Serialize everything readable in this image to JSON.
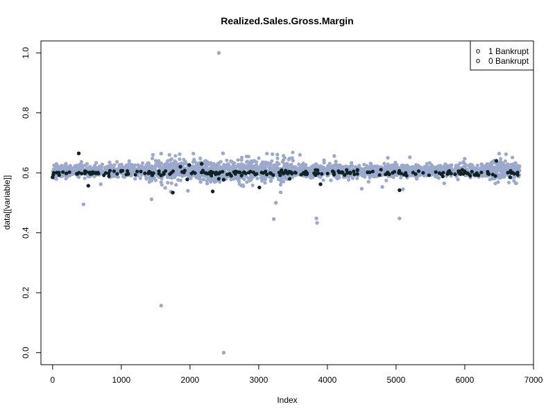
{
  "chart_data": {
    "type": "scatter",
    "title": "Realized.Sales.Gross.Margin",
    "xlabel": "Index",
    "ylabel": "data[[variable]]",
    "xlim": [
      -170,
      7000
    ],
    "ylim": [
      -0.04,
      1.04
    ],
    "xticks": [
      0,
      1000,
      2000,
      3000,
      4000,
      5000,
      6000,
      7000
    ],
    "yticks": [
      0.0,
      0.2,
      0.4,
      0.6,
      0.8,
      1.0
    ],
    "xtick_labels": [
      "0",
      "1000",
      "2000",
      "3000",
      "4000",
      "5000",
      "6000",
      "7000"
    ],
    "ytick_labels": [
      "0.0",
      "0.2",
      "0.4",
      "0.6",
      "0.8",
      "1.0"
    ],
    "grid": false,
    "legend": {
      "position": "top-right",
      "entries": [
        {
          "symbol": "o",
          "label": "1 Bankrupt",
          "color": "#000000"
        },
        {
          "symbol": "o",
          "label": "0 Bankrupt",
          "color": "#000000"
        }
      ]
    },
    "series": [
      {
        "color": "#9aa9cc",
        "marker": "filled-circle",
        "points": [
          [
            2420,
            1.0
          ],
          [
            2490,
            0.0
          ],
          [
            1580,
            0.157
          ],
          [
            450,
            0.495
          ],
          [
            1440,
            0.512
          ],
          [
            3220,
            0.446
          ],
          [
            3250,
            0.5
          ],
          [
            3840,
            0.448
          ],
          [
            3850,
            0.433
          ],
          [
            5050,
            0.448
          ],
          [
            1640,
            0.55
          ],
          [
            1720,
            0.537
          ],
          [
            1970,
            0.54
          ],
          [
            700,
            0.562
          ],
          [
            3320,
            0.535
          ],
          [
            4500,
            0.547
          ],
          [
            4800,
            0.553
          ],
          [
            5100,
            0.545
          ],
          [
            5700,
            0.565
          ],
          [
            6750,
            0.565
          ],
          [
            1460,
            0.66
          ],
          [
            1580,
            0.664
          ],
          [
            2050,
            0.664
          ],
          [
            3120,
            0.664
          ],
          [
            3600,
            0.66
          ],
          [
            4100,
            0.656
          ],
          [
            4880,
            0.65
          ],
          [
            5200,
            0.652
          ],
          [
            6000,
            0.647
          ],
          [
            6500,
            0.664
          ],
          [
            6600,
            0.662
          ],
          [
            1700,
            0.66
          ],
          [
            1850,
            0.662
          ],
          [
            2480,
            0.665
          ],
          [
            3200,
            0.662
          ],
          [
            400,
            0.628
          ],
          [
            820,
            0.622
          ],
          [
            1400,
            0.632
          ],
          [
            2150,
            0.648
          ],
          [
            2750,
            0.643
          ],
          [
            3450,
            0.648
          ],
          [
            3950,
            0.642
          ],
          [
            4350,
            0.633
          ],
          [
            5450,
            0.63
          ],
          [
            6250,
            0.628
          ],
          [
            1200,
            0.58
          ],
          [
            1500,
            0.575
          ],
          [
            2300,
            0.57
          ],
          [
            2700,
            0.578
          ],
          [
            3400,
            0.58
          ],
          [
            4050,
            0.575
          ],
          [
            4600,
            0.57
          ],
          [
            5300,
            0.58
          ],
          [
            5900,
            0.578
          ],
          [
            6400,
            0.58
          ]
        ],
        "band": {
          "x_range": [
            0,
            6800
          ],
          "y_center": 0.607,
          "y_spread": 0.018,
          "count": 2600,
          "seed": 17,
          "dense_regions": [
            [
              1350,
              3500,
              0.034
            ],
            [
              6350,
              6750,
              0.03
            ]
          ]
        }
      },
      {
        "color": "#0e2323",
        "marker": "filled-circle",
        "points": [
          [
            380,
            0.665
          ],
          [
            520,
            0.557
          ],
          [
            1750,
            0.534
          ],
          [
            2330,
            0.538
          ],
          [
            3010,
            0.551
          ],
          [
            3900,
            0.562
          ],
          [
            5050,
            0.542
          ],
          [
            2420,
            0.58
          ],
          [
            2490,
            0.577
          ],
          [
            1960,
            0.578
          ],
          [
            3450,
            0.58
          ],
          [
            1990,
            0.626
          ],
          [
            2170,
            0.63
          ],
          [
            1860,
            0.62
          ],
          [
            6460,
            0.64
          ],
          [
            0,
            0.585
          ],
          [
            10,
            0.594
          ],
          [
            200,
            0.598
          ],
          [
            1100,
            0.596
          ],
          [
            1450,
            0.592
          ],
          [
            2240,
            0.598
          ],
          [
            2600,
            0.59
          ],
          [
            3700,
            0.595
          ],
          [
            4250,
            0.593
          ],
          [
            4900,
            0.595
          ],
          [
            5680,
            0.588
          ],
          [
            6200,
            0.592
          ],
          [
            6660,
            0.585
          ],
          [
            6700,
            0.6
          ]
        ],
        "band": {
          "x_range": [
            0,
            6800
          ],
          "y_center": 0.6,
          "y_spread": 0.008,
          "count": 220,
          "seed": 5,
          "dense_regions": []
        }
      }
    ]
  }
}
